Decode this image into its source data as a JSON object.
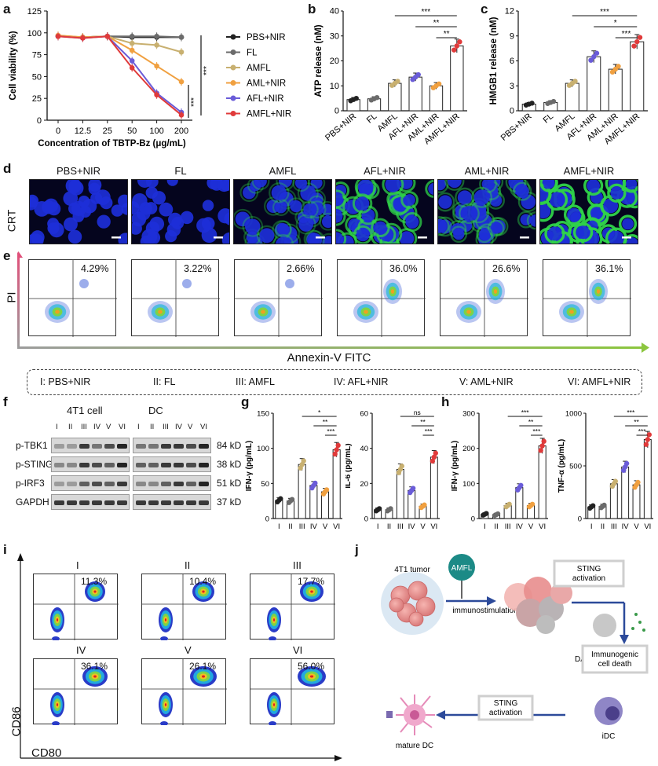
{
  "panels": {
    "a": "a",
    "b": "b",
    "c": "c",
    "d": "d",
    "e": "e",
    "f": "f",
    "g": "g",
    "h": "h",
    "i": "i",
    "j": "j"
  },
  "chart_data": [
    {
      "id": "a",
      "type": "line",
      "xlabel": "Concentration of TBTP-Bz  (μg/mL)",
      "ylabel": "Cell viability (%)",
      "categories": [
        "0",
        "12.5",
        "25",
        "50",
        "100",
        "200"
      ],
      "ylim": [
        0,
        125
      ],
      "yticks": [
        "0",
        "25",
        "50",
        "75",
        "100",
        "125"
      ],
      "series": [
        {
          "name": "PBS+NIR",
          "color": "#222222",
          "values": [
            96,
            95,
            96,
            95,
            95,
            95
          ]
        },
        {
          "name": "FL",
          "color": "#6b6b6b",
          "values": [
            96,
            95,
            96,
            96,
            96,
            95
          ]
        },
        {
          "name": "AMFL",
          "color": "#c8b070",
          "values": [
            97,
            95,
            96,
            88,
            86,
            78
          ]
        },
        {
          "name": "AML+NIR",
          "color": "#f0a040",
          "values": [
            97,
            95,
            96,
            80,
            62,
            44
          ]
        },
        {
          "name": "AFL+NIR",
          "color": "#6a5cd8",
          "values": [
            96,
            94,
            96,
            68,
            31,
            9
          ]
        },
        {
          "name": "AMFL+NIR",
          "color": "#e03a3a",
          "values": [
            96,
            94,
            96,
            60,
            29,
            6
          ]
        }
      ],
      "sig": [
        "***",
        "***"
      ]
    },
    {
      "id": "b",
      "type": "bar",
      "ylabel": "ATP release (nM)",
      "categories": [
        "PBS+NIR",
        "FL",
        "AMFL",
        "AFL+NIR",
        "AML+NIR",
        "AMFL+NIR"
      ],
      "values": [
        4.5,
        4.8,
        11,
        13.5,
        10,
        26
      ],
      "colors": [
        "#222222",
        "#6b6b6b",
        "#c8b070",
        "#6a5cd8",
        "#f0a040",
        "#e03a3a"
      ],
      "ylim": [
        0,
        40
      ],
      "yticks": [
        "0",
        "10",
        "20",
        "30",
        "40"
      ],
      "sig": [
        "***",
        "**",
        "**"
      ]
    },
    {
      "id": "c",
      "type": "bar",
      "ylabel": "HMGB1 release (nM)",
      "categories": [
        "PBS+NIR",
        "FL",
        "AMFL",
        "AFL+NIR",
        "AML+NIR",
        "AMFL+NIR"
      ],
      "values": [
        0.8,
        1.0,
        3.3,
        6.5,
        5.0,
        8.3
      ],
      "colors": [
        "#222222",
        "#6b6b6b",
        "#c8b070",
        "#6a5cd8",
        "#f0a040",
        "#e03a3a"
      ],
      "ylim": [
        0,
        12
      ],
      "yticks": [
        "0",
        "3",
        "6",
        "9",
        "12"
      ],
      "sig": [
        "***",
        "*",
        "***"
      ]
    },
    {
      "id": "g1",
      "type": "bar",
      "ylabel": "IFN-γ (pg/mL)",
      "categories": [
        "I",
        "II",
        "III",
        "IV",
        "V",
        "VI"
      ],
      "values": [
        26,
        25,
        77,
        47,
        38,
        98
      ],
      "colors": [
        "#222222",
        "#6b6b6b",
        "#c8b070",
        "#6a5cd8",
        "#f0a040",
        "#e03a3a"
      ],
      "ylim": [
        0,
        150
      ],
      "yticks": [
        "0",
        "50",
        "100",
        "150"
      ],
      "sig": [
        "*",
        "**",
        "***"
      ]
    },
    {
      "id": "g2",
      "type": "bar",
      "ylabel": "IL-6 (pg/mL)",
      "categories": [
        "I",
        "II",
        "III",
        "IV",
        "V",
        "VI"
      ],
      "values": [
        5,
        5,
        28,
        16,
        7,
        35
      ],
      "colors": [
        "#222222",
        "#6b6b6b",
        "#c8b070",
        "#6a5cd8",
        "#f0a040",
        "#e03a3a"
      ],
      "ylim": [
        0,
        60
      ],
      "yticks": [
        "0",
        "20",
        "40",
        "60"
      ],
      "sig": [
        "ns",
        "**",
        "***"
      ]
    },
    {
      "id": "h1",
      "type": "bar",
      "ylabel": "IFN-γ (pg/mL)",
      "categories": [
        "I",
        "II",
        "III",
        "IV",
        "V",
        "VI"
      ],
      "values": [
        12,
        11,
        37,
        88,
        37,
        207
      ],
      "colors": [
        "#222222",
        "#6b6b6b",
        "#c8b070",
        "#6a5cd8",
        "#f0a040",
        "#e03a3a"
      ],
      "ylim": [
        0,
        300
      ],
      "yticks": [
        "0",
        "100",
        "200",
        "300"
      ],
      "sig": [
        "***",
        "**",
        "***"
      ]
    },
    {
      "id": "h2",
      "type": "bar",
      "ylabel": "TNF-α (pg/mL)",
      "categories": [
        "I",
        "II",
        "III",
        "IV",
        "V",
        "VI"
      ],
      "values": [
        110,
        115,
        330,
        490,
        320,
        750
      ],
      "colors": [
        "#222222",
        "#6b6b6b",
        "#c8b070",
        "#6a5cd8",
        "#f0a040",
        "#e03a3a"
      ],
      "ylim": [
        0,
        1000
      ],
      "yticks": [
        "0",
        "500",
        "1000"
      ],
      "sig": [
        "***",
        "**",
        "***"
      ]
    }
  ],
  "d": {
    "titles": [
      "PBS+NIR",
      "FL",
      "AMFL",
      "AFL+NIR",
      "AML+NIR",
      "AMFL+NIR"
    ],
    "ylabel": "CRT",
    "green_levels": [
      0,
      0.05,
      0.35,
      0.75,
      0.45,
      0.95
    ]
  },
  "e": {
    "percents": [
      "4.29%",
      "3.22%",
      "2.66%",
      "36.0%",
      "26.6%",
      "36.1%"
    ],
    "ylabel": "PI",
    "xlabel": "Annexin-V FITC"
  },
  "legend_groups": [
    "I: PBS+NIR",
    "II: FL",
    "III: AMFL",
    "IV: AFL+NIR",
    "V: AML+NIR",
    "VI: AMFL+NIR"
  ],
  "f": {
    "cell_titles": [
      "4T1 cell",
      "DC"
    ],
    "lanes": [
      "I",
      "II",
      "III",
      "IV",
      "V",
      "VI"
    ],
    "proteins": [
      "p-TBK1",
      "p-STING",
      "p-IRF3",
      "GAPDH"
    ],
    "sizes": [
      "84 kD",
      "38 kD",
      "51 kD",
      "37 kD"
    ]
  },
  "i": {
    "titles": [
      "I",
      "II",
      "III",
      "IV",
      "V",
      "VI"
    ],
    "percents": [
      "11.3%",
      "10.4%",
      "17.7%",
      "36.1%",
      "26.1%",
      "56.0%"
    ],
    "ylabel": "CD86",
    "xlabel": "CD80"
  },
  "j": {
    "tumor": "4T1 tumor",
    "amfl": "AMFL",
    "immuno": "immunostimulation",
    "sting1": "STING\nactivation",
    "icd": "Immunogenic\ncell death",
    "damp": "DAMP",
    "sting2": "STING\nactivation",
    "idc": "iDC",
    "mature": "mature DC"
  }
}
